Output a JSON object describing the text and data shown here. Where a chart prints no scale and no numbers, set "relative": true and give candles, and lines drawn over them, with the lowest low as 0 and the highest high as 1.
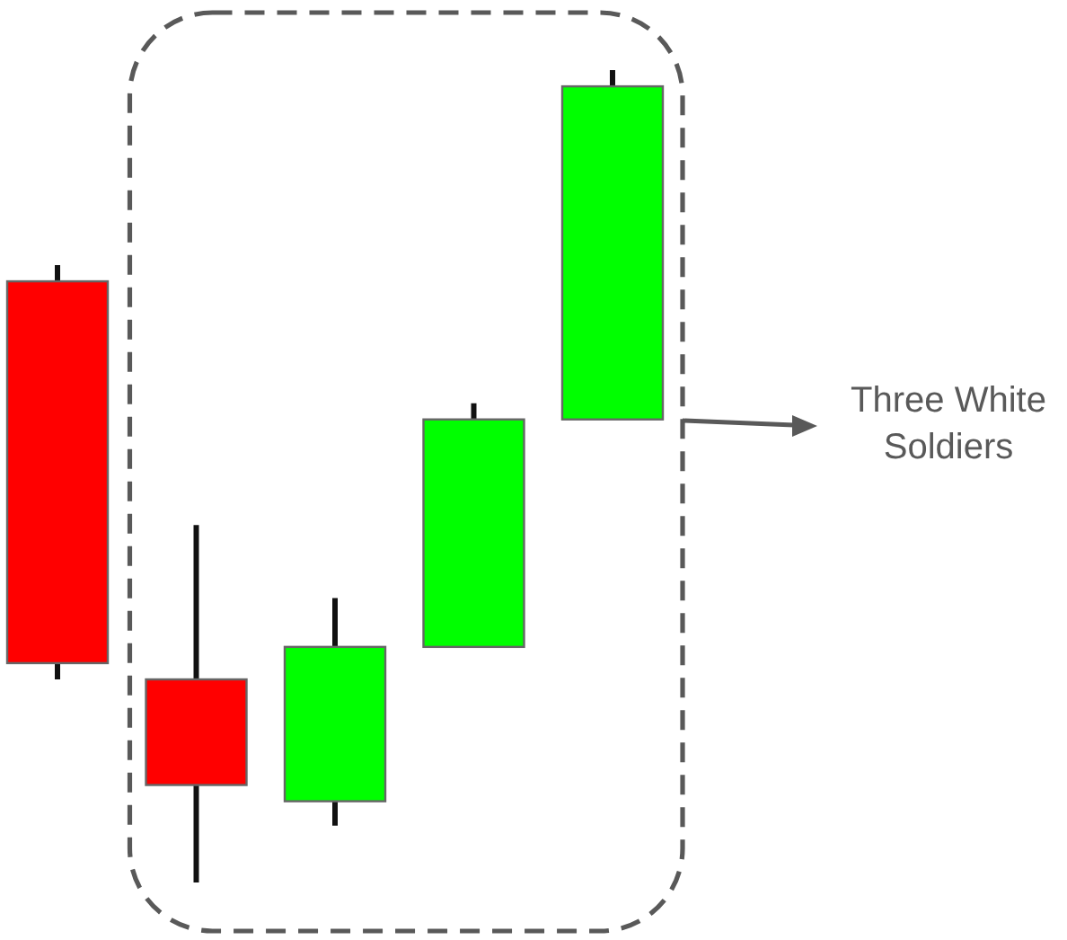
{
  "chart_data": {
    "type": "candlestick",
    "relative": true,
    "categories": [
      null,
      null,
      null,
      null,
      null
    ],
    "ohlc": [
      [
        0.74,
        0.76,
        0.25,
        0.27
      ],
      [
        0.25,
        0.44,
        0,
        0.12
      ],
      [
        0.1,
        0.35,
        0.07,
        0.29
      ],
      [
        0.29,
        0.59,
        0.29,
        0.57
      ],
      [
        0.57,
        1,
        0.57,
        0.98
      ]
    ],
    "colors": [
      "#ff0000",
      "#ff0000",
      "#00ff00",
      "#00ff00",
      "#00ff00"
    ],
    "annotations": [
      "Three White Soldiers"
    ]
  }
}
